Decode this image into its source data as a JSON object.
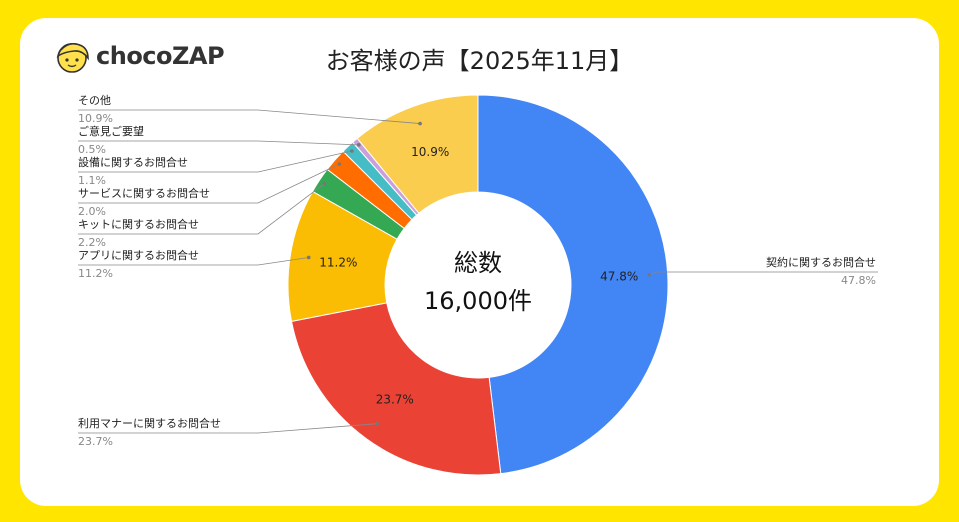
{
  "brand": {
    "logo_text": "chocoZAP",
    "colors": {
      "background": "#ffe500",
      "card": "#ffffff"
    }
  },
  "chart_data": {
    "type": "pie",
    "title": "お客様の声【2025年11月】",
    "center_label": [
      "総数",
      "16,000件"
    ],
    "slices": [
      {
        "label": "契約に関するお問合せ",
        "value": 47.8,
        "display": "47.8%",
        "color": "#4285f4"
      },
      {
        "label": "利用マナーに関するお問合せ",
        "value": 23.7,
        "display": "23.7%",
        "color": "#ea4335"
      },
      {
        "label": "アプリに関するお問合せ",
        "value": 11.2,
        "display": "11.2%",
        "color": "#fbbc04"
      },
      {
        "label": "キットに関するお問合せ",
        "value": 2.2,
        "display": "2.2%",
        "color": "#34a853"
      },
      {
        "label": "サービスに関するお問合せ",
        "value": 2.0,
        "display": "2.0%",
        "color": "#ff6d01"
      },
      {
        "label": "設備に関するお問合せ",
        "value": 1.1,
        "display": "1.1%",
        "color": "#46bdc6"
      },
      {
        "label": "ご意見ご要望",
        "value": 0.5,
        "display": "0.5%",
        "color": "#c9a0dc"
      },
      {
        "label": "その他",
        "value": 10.9,
        "display": "10.9%",
        "color": "#fbcd4f"
      }
    ],
    "inner_labels": [
      "47.8%",
      "23.7%",
      "11.2%",
      "10.9%"
    ],
    "legend": "callouts"
  }
}
